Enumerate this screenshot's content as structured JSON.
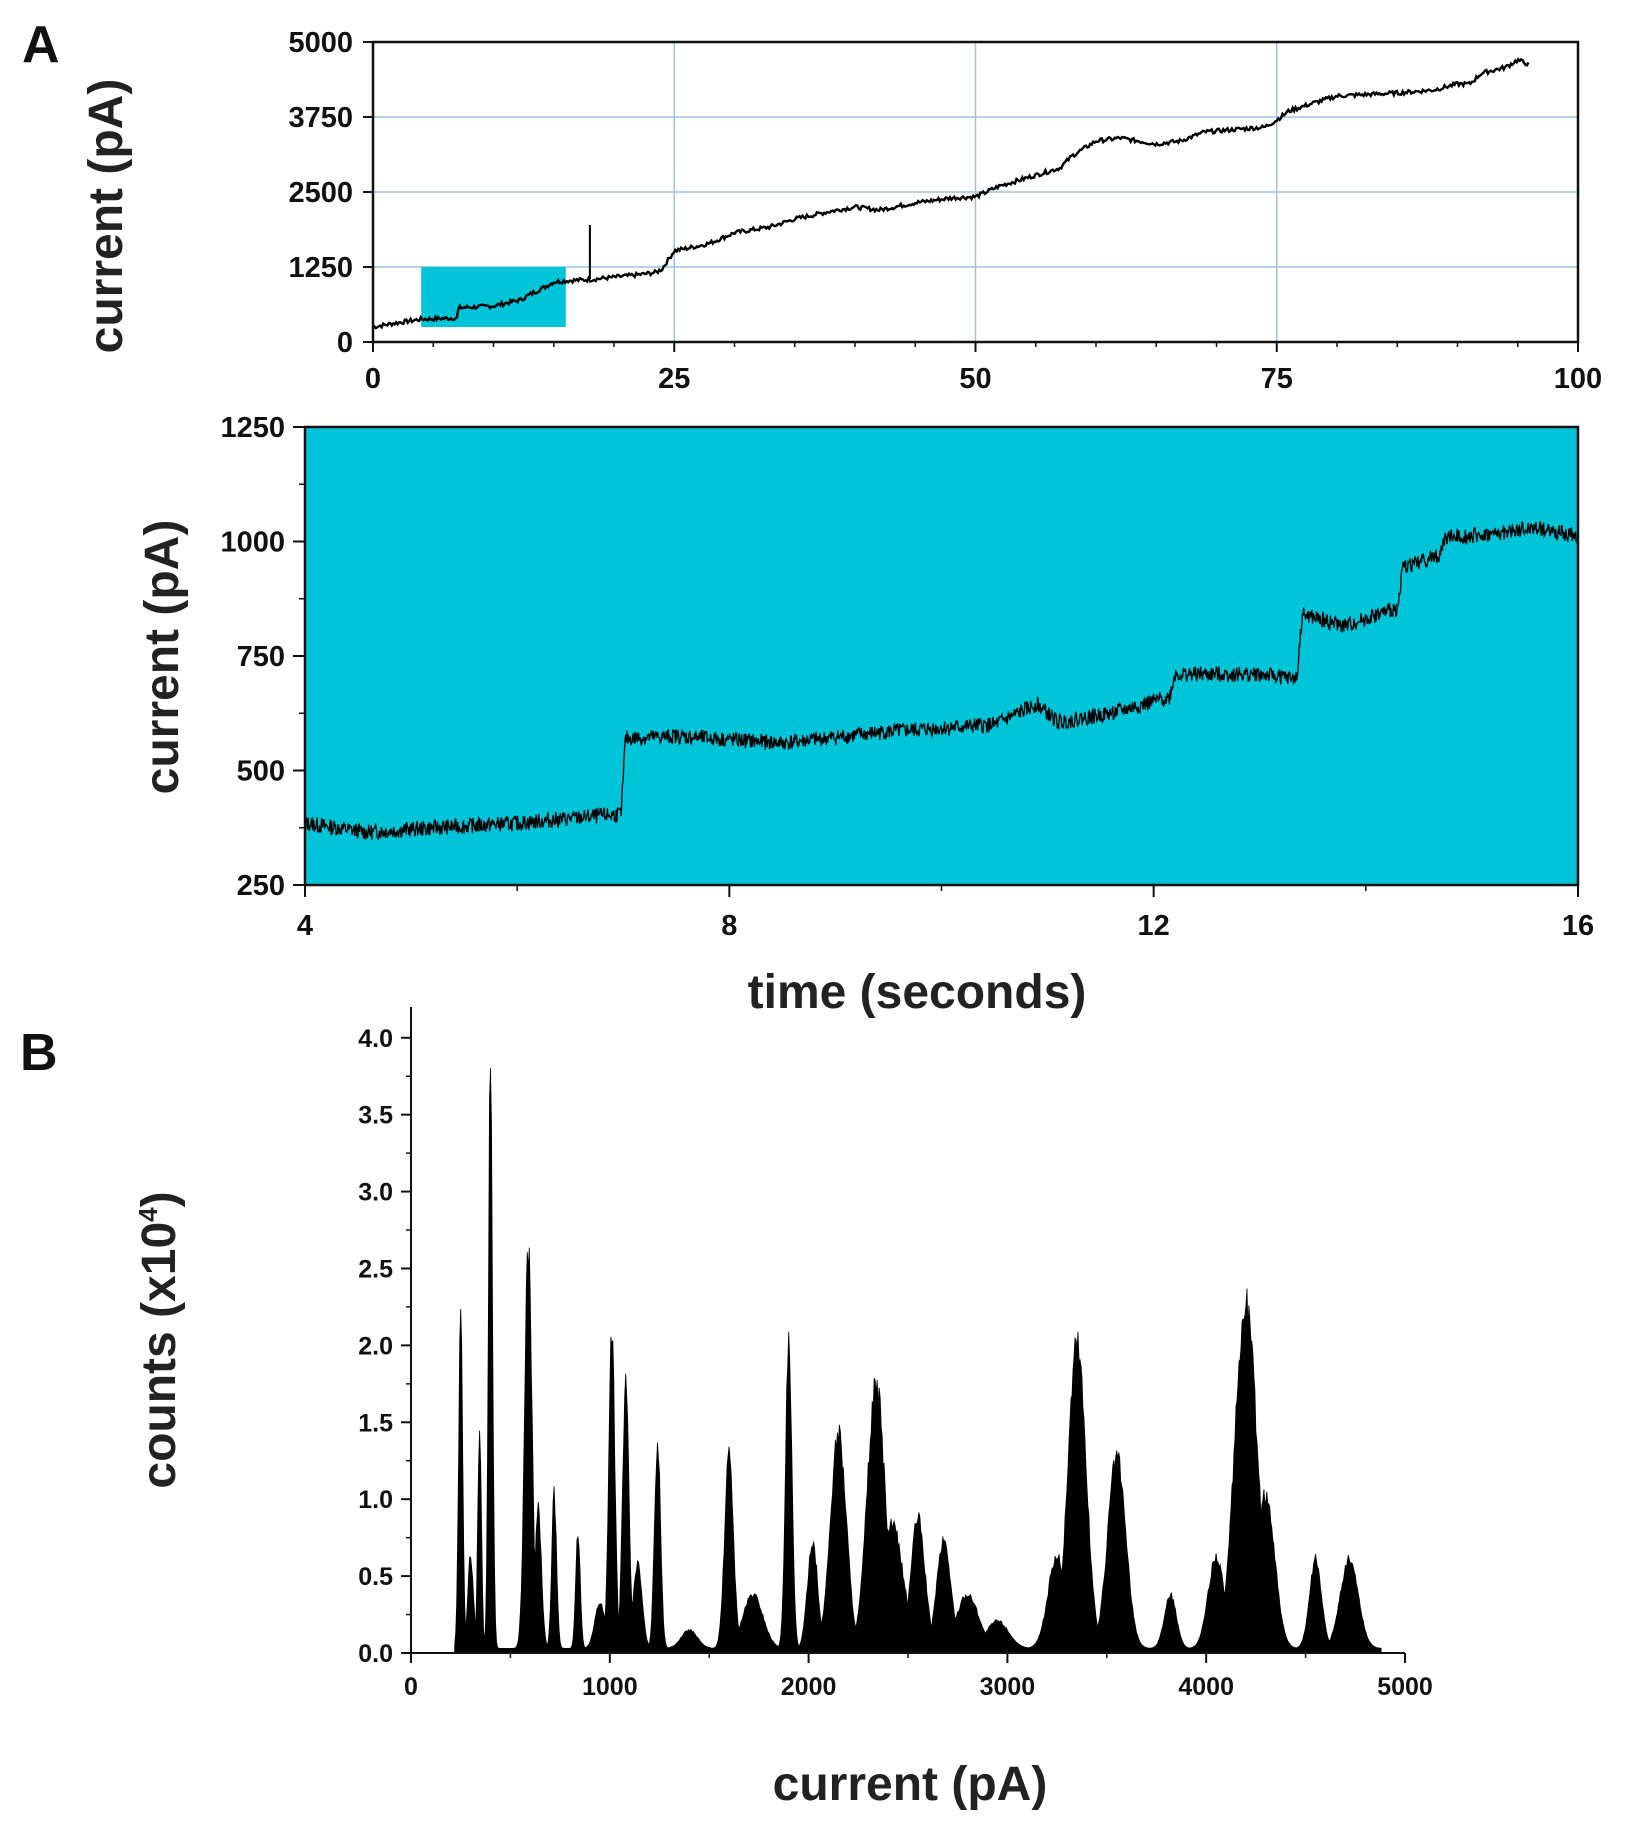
{
  "panel_labels": {
    "a": "A",
    "b": "B"
  },
  "colors": {
    "trace": "#000000",
    "highlight": "#00c4d8",
    "grid": "#9ec3de",
    "frame": "#111111"
  },
  "chart_data": [
    {
      "id": "A_top",
      "type": "line",
      "title": "",
      "xlabel": "",
      "ylabel": "current (pA)",
      "xlim": [
        0,
        100
      ],
      "ylim": [
        0,
        5000
      ],
      "xticks": [
        0,
        25,
        50,
        75,
        100
      ],
      "xtick_labels": [
        "0",
        "25",
        "50",
        "75",
        "100"
      ],
      "yticks": [
        0,
        1250,
        2500,
        3750,
        5000
      ],
      "ytick_labels": [
        "0",
        "1250",
        "2500",
        "3750",
        "5000"
      ],
      "grid": true,
      "highlight_region": {
        "x": [
          4,
          16
        ],
        "y": [
          250,
          1250
        ]
      },
      "spike": {
        "x": 18,
        "y": [
          1050,
          1950
        ]
      },
      "series": [
        {
          "name": "current trace",
          "x": [
            0,
            2,
            4,
            7,
            7.1,
            10,
            12.2,
            13.4,
            14.3,
            15,
            16,
            18,
            20,
            22,
            23.5,
            24,
            25,
            27,
            28,
            30,
            33,
            35,
            38,
            40,
            42,
            45,
            48,
            50,
            52,
            55,
            57,
            58,
            60,
            62,
            65,
            67,
            69,
            72,
            74,
            75,
            76,
            78,
            80,
            82,
            85,
            88,
            90,
            91,
            92,
            94,
            95,
            96
          ],
          "y": [
            250,
            320,
            380,
            400,
            570,
            600,
            700,
            830,
            920,
            1000,
            1020,
            1040,
            1080,
            1120,
            1160,
            1220,
            1520,
            1600,
            1650,
            1820,
            1920,
            2050,
            2180,
            2250,
            2200,
            2320,
            2400,
            2420,
            2600,
            2780,
            2900,
            3100,
            3350,
            3400,
            3300,
            3350,
            3500,
            3550,
            3580,
            3700,
            3850,
            3980,
            4100,
            4120,
            4150,
            4200,
            4300,
            4300,
            4480,
            4580,
            4700,
            4620
          ]
        }
      ]
    },
    {
      "id": "A_bottom",
      "type": "line",
      "title": "",
      "xlabel": "time (seconds)",
      "ylabel": "current (pA)",
      "xlim": [
        4,
        16
      ],
      "ylim": [
        250,
        1250
      ],
      "xticks": [
        4,
        8,
        12,
        16
      ],
      "xtick_labels": [
        "4",
        "8",
        "12",
        "16"
      ],
      "yticks": [
        250,
        500,
        750,
        1000,
        1250
      ],
      "ytick_labels": [
        "250",
        "500",
        "750",
        "1000",
        "1250"
      ],
      "background": "highlight",
      "grid": false,
      "series": [
        {
          "name": "current trace (zoom)",
          "x": [
            4,
            4.6,
            5.2,
            6,
            6.98,
            7.02,
            7.5,
            8.5,
            9.5,
            10.5,
            10.9,
            11.1,
            11.6,
            12.15,
            12.2,
            13,
            13.35,
            13.4,
            13.8,
            14.3,
            14.35,
            14.7,
            14.75,
            15.2,
            15.6,
            16
          ],
          "y": [
            385,
            365,
            375,
            385,
            405,
            570,
            575,
            560,
            585,
            600,
            645,
            605,
            625,
            660,
            710,
            710,
            700,
            840,
            815,
            855,
            945,
            970,
            1010,
            1015,
            1030,
            1010
          ]
        }
      ]
    },
    {
      "id": "B_hist",
      "type": "area",
      "title": "",
      "xlabel": "current (pA)",
      "ylabel": "counts (x10",
      "ylabel_superscript": "4",
      "ylabel_close": ")",
      "xlim": [
        0,
        5000
      ],
      "ylim": [
        0,
        4.2
      ],
      "xticks": [
        0,
        1000,
        2000,
        3000,
        4000,
        5000
      ],
      "xtick_labels": [
        "0",
        "1000",
        "2000",
        "3000",
        "4000",
        "5000"
      ],
      "yticks": [
        0,
        0.5,
        1.0,
        1.5,
        2.0,
        2.5,
        3.0,
        3.5,
        4.0
      ],
      "ytick_labels": [
        "0.0",
        "0.5",
        "1.0",
        "1.5",
        "2.0",
        "2.5",
        "3.0",
        "3.5",
        "4.0"
      ],
      "grid": false,
      "peaks": [
        {
          "c": 250,
          "h": 2.15,
          "w": 10
        },
        {
          "c": 300,
          "h": 0.6,
          "w": 14
        },
        {
          "c": 345,
          "h": 1.42,
          "w": 9
        },
        {
          "c": 400,
          "h": 3.85,
          "w": 10
        },
        {
          "c": 590,
          "h": 2.6,
          "w": 18
        },
        {
          "c": 640,
          "h": 0.9,
          "w": 16
        },
        {
          "c": 720,
          "h": 1.0,
          "w": 12
        },
        {
          "c": 840,
          "h": 0.75,
          "w": 11
        },
        {
          "c": 950,
          "h": 0.3,
          "w": 25
        },
        {
          "c": 1010,
          "h": 2.1,
          "w": 15
        },
        {
          "c": 1080,
          "h": 1.7,
          "w": 16
        },
        {
          "c": 1140,
          "h": 0.55,
          "w": 22
        },
        {
          "c": 1240,
          "h": 1.35,
          "w": 15
        },
        {
          "c": 1400,
          "h": 0.12,
          "w": 40
        },
        {
          "c": 1600,
          "h": 1.25,
          "w": 22
        },
        {
          "c": 1720,
          "h": 0.35,
          "w": 50
        },
        {
          "c": 1900,
          "h": 1.95,
          "w": 16
        },
        {
          "c": 2020,
          "h": 0.7,
          "w": 25
        },
        {
          "c": 2150,
          "h": 1.4,
          "w": 40
        },
        {
          "c": 2340,
          "h": 1.7,
          "w": 45
        },
        {
          "c": 2420,
          "h": 0.8,
          "w": 55
        },
        {
          "c": 2550,
          "h": 0.85,
          "w": 35
        },
        {
          "c": 2680,
          "h": 0.7,
          "w": 35
        },
        {
          "c": 2800,
          "h": 0.35,
          "w": 55
        },
        {
          "c": 2950,
          "h": 0.18,
          "w": 55
        },
        {
          "c": 3350,
          "h": 2.0,
          "w": 45
        },
        {
          "c": 3550,
          "h": 1.25,
          "w": 45
        },
        {
          "c": 3250,
          "h": 0.6,
          "w": 45
        },
        {
          "c": 3820,
          "h": 0.35,
          "w": 30
        },
        {
          "c": 4050,
          "h": 0.6,
          "w": 40
        },
        {
          "c": 4200,
          "h": 2.25,
          "w": 55
        },
        {
          "c": 4300,
          "h": 1.0,
          "w": 45
        },
        {
          "c": 4550,
          "h": 0.58,
          "w": 30
        },
        {
          "c": 4720,
          "h": 0.58,
          "w": 45
        }
      ],
      "data_range": [
        220,
        4880
      ],
      "bin_width": 5
    }
  ]
}
